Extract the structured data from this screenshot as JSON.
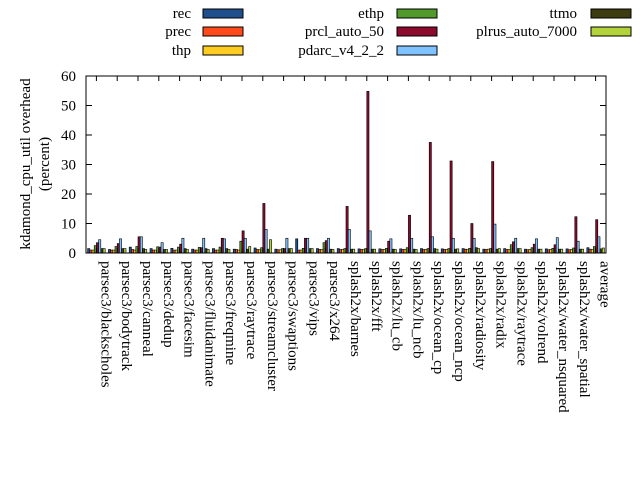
{
  "chart_data": {
    "type": "bar",
    "ylabel": "kdamond_cpu_util overhead\n(percent)",
    "ylim": [
      0,
      60
    ],
    "yticks": [
      0,
      10,
      20,
      30,
      40,
      50,
      60
    ],
    "legend_placement": "top",
    "categories": [
      "parsec3/blackscholes",
      "parsec3/bodytrack",
      "parsec3/canneal",
      "parsec3/dedup",
      "parsec3/facesim",
      "parsec3/fluidanimate",
      "parsec3/freqmine",
      "parsec3/raytrace",
      "parsec3/streamcluster",
      "parsec3/swaptions",
      "parsec3/vips",
      "parsec3/x264",
      "splash2x/barnes",
      "splash2x/fft",
      "splash2x/lu_cb",
      "splash2x/lu_ncb",
      "splash2x/ocean_cp",
      "splash2x/ocean_ncp",
      "splash2x/radiosity",
      "splash2x/radix",
      "splash2x/raytrace",
      "splash2x/volrend",
      "splash2x/water_nsquared",
      "splash2x/water_spatial",
      "average"
    ],
    "series": [
      {
        "name": "rec",
        "color": "#1f4e8c",
        "values": [
          1.5,
          1.2,
          2.0,
          1.5,
          1.6,
          1.3,
          1.5,
          1.3,
          1.7,
          1.3,
          4.8,
          1.5,
          1.5,
          1.4,
          1.4,
          1.4,
          1.5,
          1.4,
          1.5,
          1.3,
          1.5,
          1.3,
          1.4,
          1.4,
          1.8
        ]
      },
      {
        "name": "prec",
        "color": "#ff4a1c",
        "values": [
          1.0,
          1.0,
          1.2,
          1.0,
          1.0,
          1.0,
          1.0,
          1.2,
          1.2,
          1.1,
          1.0,
          1.2,
          1.2,
          1.2,
          1.2,
          1.2,
          1.2,
          1.2,
          1.3,
          1.2,
          1.2,
          1.1,
          1.1,
          1.1,
          1.3
        ]
      },
      {
        "name": "thp",
        "color": "#ffcc22",
        "values": [
          1.0,
          1.0,
          1.0,
          1.0,
          1.0,
          1.0,
          1.0,
          1.0,
          1.1,
          1.1,
          1.0,
          1.2,
          1.2,
          1.2,
          1.2,
          1.2,
          1.2,
          1.2,
          1.2,
          1.3,
          1.2,
          1.2,
          1.2,
          1.2,
          1.2
        ]
      },
      {
        "name": "ethp",
        "color": "#4f9a2a",
        "values": [
          2.5,
          2.2,
          2.2,
          2.1,
          2.0,
          1.9,
          2.0,
          4.0,
          1.8,
          1.5,
          1.6,
          3.5,
          1.5,
          1.5,
          1.6,
          1.8,
          1.5,
          1.5,
          1.6,
          1.5,
          2.8,
          1.8,
          1.6,
          1.7,
          2.2
        ]
      },
      {
        "name": "prcl_auto_50",
        "color": "#8c0a2c",
        "values": [
          3.5,
          3.2,
          5.5,
          2.0,
          3.0,
          1.8,
          5.0,
          7.5,
          16.8,
          1.5,
          5.0,
          4.2,
          15.8,
          54.8,
          4.0,
          12.8,
          37.5,
          31.2,
          10.0,
          31.0,
          3.8,
          3.0,
          2.8,
          12.3,
          11.3
        ]
      },
      {
        "name": "pdarc_v4_2_2",
        "color": "#7ec2ff",
        "values": [
          4.5,
          4.8,
          5.5,
          3.5,
          5.0,
          5.0,
          4.8,
          5.0,
          8.0,
          5.0,
          5.0,
          5.0,
          8.0,
          7.5,
          4.8,
          5.0,
          5.5,
          5.0,
          5.0,
          9.8,
          5.0,
          4.8,
          5.2,
          4.0,
          5.5
        ]
      },
      {
        "name": "ttmo",
        "color": "#3c3c10",
        "values": [
          1.5,
          1.5,
          1.5,
          1.2,
          1.5,
          1.5,
          1.5,
          1.3,
          1.3,
          1.5,
          1.5,
          1.3,
          1.3,
          1.3,
          1.3,
          1.3,
          1.5,
          1.3,
          1.8,
          1.3,
          1.5,
          1.3,
          1.3,
          1.3,
          1.4
        ]
      },
      {
        "name": "plrus_auto_7000",
        "color": "#b3d33a",
        "values": [
          1.5,
          1.5,
          1.2,
          1.2,
          1.2,
          1.2,
          1.2,
          2.2,
          4.5,
          1.5,
          1.5,
          1.2,
          1.3,
          1.3,
          1.2,
          1.2,
          1.3,
          1.4,
          1.5,
          1.5,
          1.5,
          1.3,
          1.3,
          1.3,
          1.7
        ]
      }
    ]
  }
}
